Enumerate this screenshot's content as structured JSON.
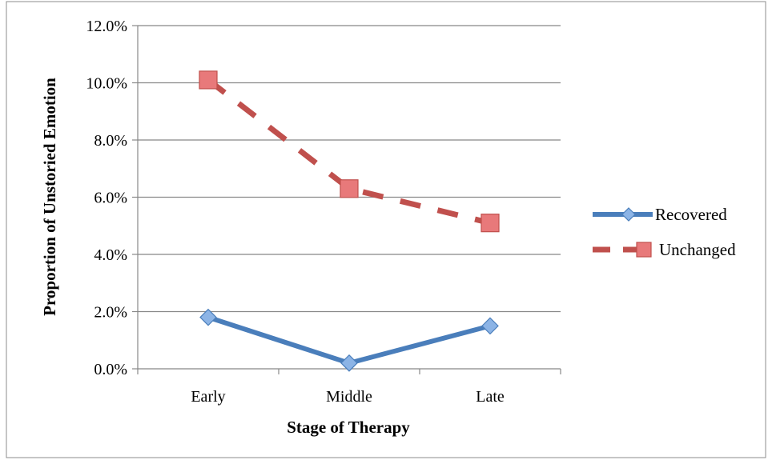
{
  "chart_data": {
    "type": "line",
    "title": "",
    "xlabel": "Stage of Therapy",
    "ylabel": "Proportion of Unstoried Emotion",
    "categories": [
      "Early",
      "Middle",
      "Late"
    ],
    "y_tick_labels": [
      "0.0%",
      "2.0%",
      "4.0%",
      "6.0%",
      "8.0%",
      "10.0%",
      "12.0%"
    ],
    "ylim": [
      0,
      12
    ],
    "y_unit": "%",
    "grid": "horizontal",
    "legend_position": "right",
    "series": [
      {
        "name": "Recovered",
        "values": [
          1.8,
          0.2,
          1.5
        ],
        "color": "#4a7ebb",
        "marker": "diamond",
        "marker_color": "#8cb4e6",
        "line_style": "solid"
      },
      {
        "name": "Unchanged",
        "values": [
          10.1,
          6.3,
          5.1
        ],
        "color": "#c0504d",
        "marker": "square",
        "marker_color": "#e8797a",
        "line_style": "dashed"
      }
    ]
  }
}
